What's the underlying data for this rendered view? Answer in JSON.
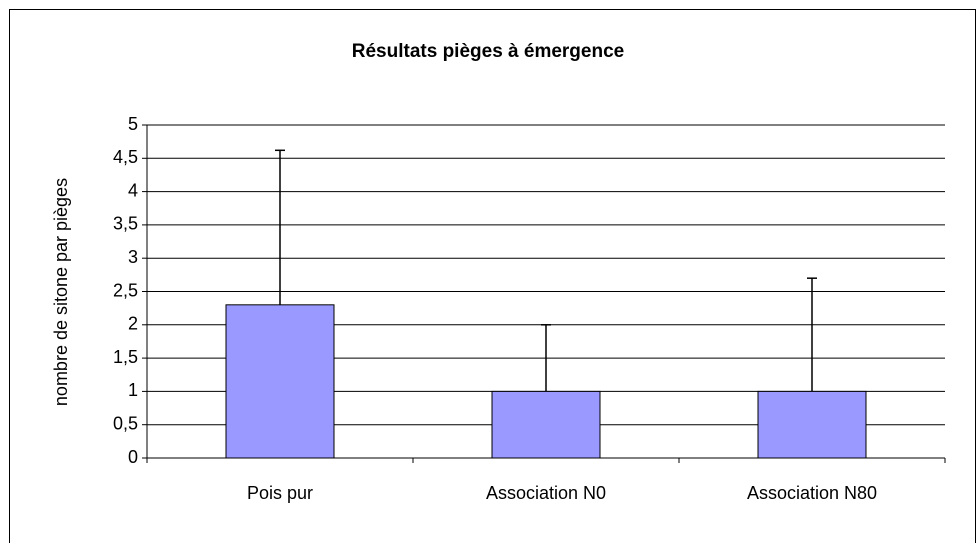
{
  "chart_data": {
    "type": "bar",
    "title": "Résultats pièges à émergence",
    "ylabel": "nombre de sitone par pièges",
    "categories": [
      "Pois pur",
      "Association N0",
      "Association N80"
    ],
    "values": [
      2.3,
      1.0,
      1.0
    ],
    "errors": [
      2.32,
      1.0,
      1.7
    ],
    "color": "#9999ff",
    "ylim": [
      0,
      5
    ],
    "yticks": [
      0,
      {
        "value": 0.5,
        "label": "0,5"
      },
      1,
      {
        "value": 1.5,
        "label": "1,5"
      },
      2,
      {
        "value": 2.5,
        "label": "2,5"
      },
      3,
      {
        "value": 3.5,
        "label": "3,5"
      },
      4,
      {
        "value": 4.5,
        "label": "4,5"
      },
      5
    ],
    "grid": true
  }
}
